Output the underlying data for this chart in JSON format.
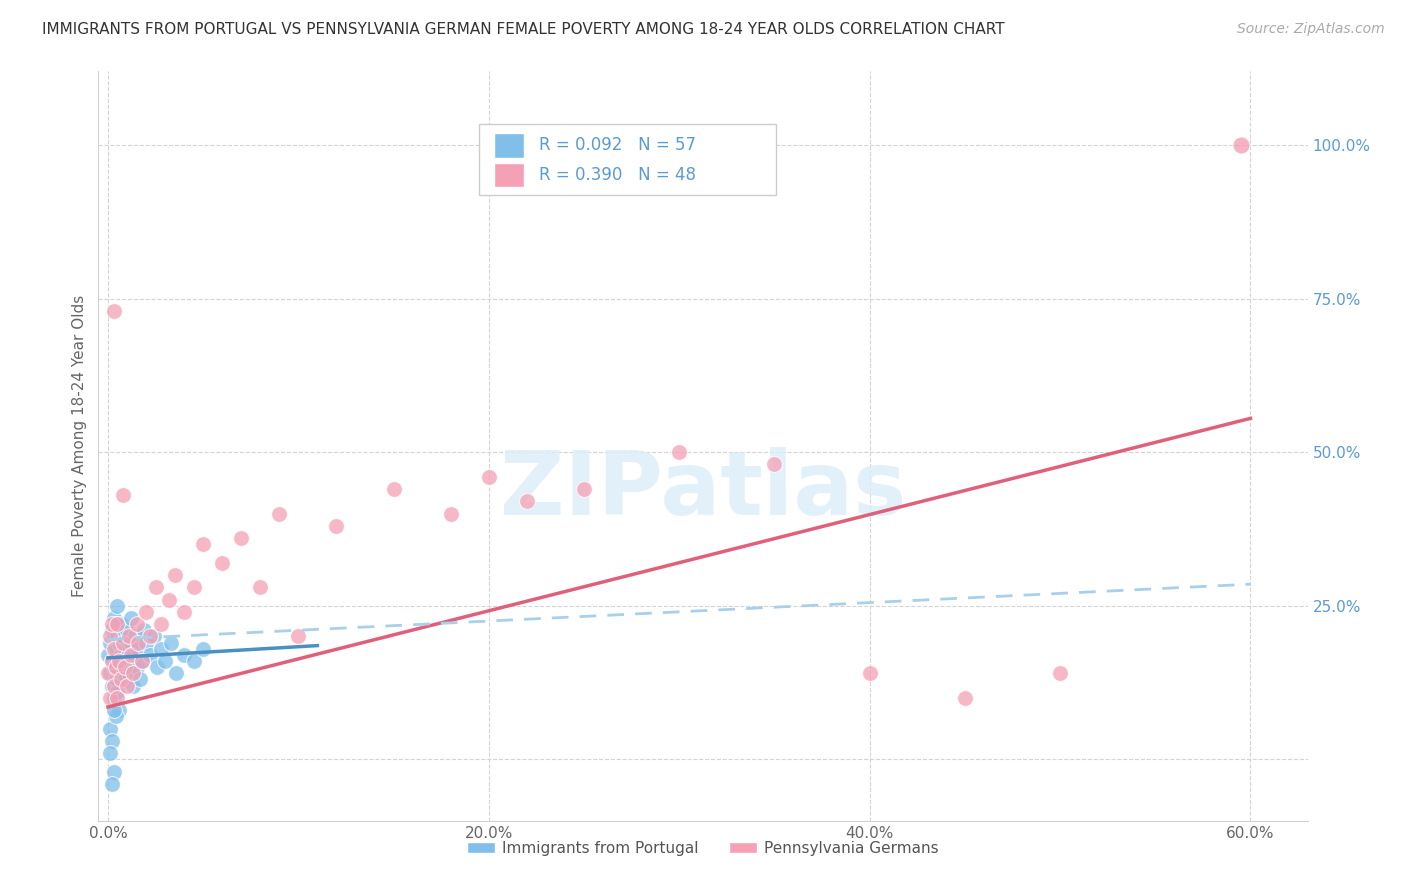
{
  "title": "IMMIGRANTS FROM PORTUGAL VS PENNSYLVANIA GERMAN FEMALE POVERTY AMONG 18-24 YEAR OLDS CORRELATION CHART",
  "source": "Source: ZipAtlas.com",
  "ylabel": "Female Poverty Among 18-24 Year Olds",
  "r1": 0.092,
  "n1": 57,
  "r2": 0.39,
  "n2": 48,
  "color_blue": "#7fbfea",
  "color_pink": "#f4a0b5",
  "color_blue_line": "#4a90c4",
  "color_pink_line": "#e0607a",
  "color_blue_dashed": "#a8d0ea",
  "watermark": "ZIPatlas",
  "background_color": "#ffffff",
  "grid_color": "#d0d0d0",
  "legend_label_1": "Immigrants from Portugal",
  "legend_label_2": "Pennsylvania Germans",
  "blue_x": [
    0.0,
    0.001,
    0.001,
    0.002,
    0.002,
    0.002,
    0.003,
    0.003,
    0.003,
    0.003,
    0.004,
    0.004,
    0.004,
    0.005,
    0.005,
    0.005,
    0.005,
    0.006,
    0.006,
    0.006,
    0.007,
    0.007,
    0.008,
    0.008,
    0.009,
    0.009,
    0.01,
    0.01,
    0.011,
    0.012,
    0.012,
    0.013,
    0.013,
    0.014,
    0.015,
    0.016,
    0.017,
    0.018,
    0.019,
    0.02,
    0.022,
    0.024,
    0.026,
    0.028,
    0.03,
    0.033,
    0.036,
    0.04,
    0.045,
    0.05,
    0.001,
    0.002,
    0.003,
    0.004,
    0.002,
    0.001,
    0.003
  ],
  "blue_y": [
    0.17,
    0.14,
    0.19,
    0.16,
    0.21,
    0.12,
    0.15,
    0.2,
    0.1,
    0.23,
    0.13,
    0.18,
    0.22,
    0.11,
    0.16,
    0.2,
    0.25,
    0.14,
    0.19,
    0.08,
    0.17,
    0.22,
    0.15,
    0.2,
    0.13,
    0.18,
    0.16,
    0.21,
    0.14,
    0.19,
    0.23,
    0.17,
    0.12,
    0.2,
    0.15,
    0.18,
    0.13,
    0.16,
    0.21,
    0.19,
    0.17,
    0.2,
    0.15,
    0.18,
    0.16,
    0.19,
    0.14,
    0.17,
    0.16,
    0.18,
    0.05,
    0.03,
    -0.02,
    0.07,
    -0.04,
    0.01,
    0.08
  ],
  "pink_x": [
    0.0,
    0.001,
    0.001,
    0.002,
    0.002,
    0.003,
    0.003,
    0.004,
    0.005,
    0.005,
    0.006,
    0.007,
    0.008,
    0.009,
    0.01,
    0.011,
    0.012,
    0.013,
    0.015,
    0.016,
    0.018,
    0.02,
    0.022,
    0.025,
    0.028,
    0.032,
    0.035,
    0.04,
    0.045,
    0.05,
    0.06,
    0.07,
    0.08,
    0.09,
    0.1,
    0.12,
    0.15,
    0.18,
    0.2,
    0.22,
    0.25,
    0.3,
    0.35,
    0.4,
    0.45,
    0.5,
    0.003,
    0.008
  ],
  "pink_y": [
    0.14,
    0.2,
    0.1,
    0.16,
    0.22,
    0.12,
    0.18,
    0.15,
    0.22,
    0.1,
    0.16,
    0.13,
    0.19,
    0.15,
    0.12,
    0.2,
    0.17,
    0.14,
    0.22,
    0.19,
    0.16,
    0.24,
    0.2,
    0.28,
    0.22,
    0.26,
    0.3,
    0.24,
    0.28,
    0.35,
    0.32,
    0.36,
    0.28,
    0.4,
    0.2,
    0.38,
    0.44,
    0.4,
    0.46,
    0.42,
    0.44,
    0.5,
    0.48,
    0.14,
    0.1,
    0.14,
    0.73,
    0.43
  ],
  "blue_line_x": [
    0.0,
    0.11
  ],
  "blue_line_y": [
    0.165,
    0.185
  ],
  "pink_line_x": [
    0.0,
    0.6
  ],
  "pink_line_y": [
    0.085,
    0.555
  ],
  "dash_line_x": [
    0.0,
    0.6
  ],
  "dash_line_y": [
    0.195,
    0.285
  ],
  "xlim": [
    -0.005,
    0.63
  ],
  "ylim": [
    -0.1,
    1.12
  ],
  "xticks": [
    0.0,
    0.2,
    0.4,
    0.6
  ],
  "yticks_right": [
    0.25,
    0.5,
    0.75,
    1.0
  ],
  "xticklabels": [
    "0.0%",
    "20.0%",
    "40.0%",
    "60.0%"
  ],
  "yticklabels_right": [
    "25.0%",
    "50.0%",
    "75.0%",
    "100.0%"
  ]
}
